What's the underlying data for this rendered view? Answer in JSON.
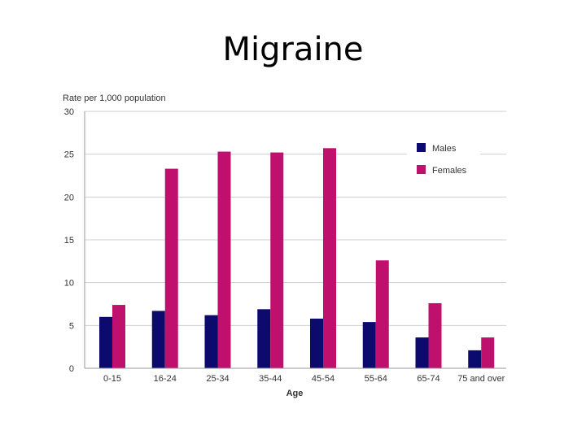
{
  "slide_title": "Migraine",
  "chart_data": {
    "type": "bar",
    "ylabel": "Rate per 1,000 population",
    "xlabel": "Age",
    "categories": [
      "0-15",
      "16-24",
      "25-34",
      "35-44",
      "45-54",
      "55-64",
      "65-74",
      "75 and over"
    ],
    "series": [
      {
        "name": "Males",
        "color": "#0d0a6e",
        "values": [
          6.0,
          6.7,
          6.2,
          6.9,
          5.8,
          5.4,
          3.6,
          2.1
        ]
      },
      {
        "name": "Females",
        "color": "#c0106e",
        "values": [
          7.4,
          23.3,
          25.3,
          25.2,
          25.7,
          12.6,
          7.6,
          3.6
        ]
      }
    ],
    "ylim": [
      0,
      30
    ],
    "yticks": [
      0,
      5,
      10,
      15,
      20,
      25,
      30
    ],
    "grid": true,
    "legend": "top-right"
  }
}
